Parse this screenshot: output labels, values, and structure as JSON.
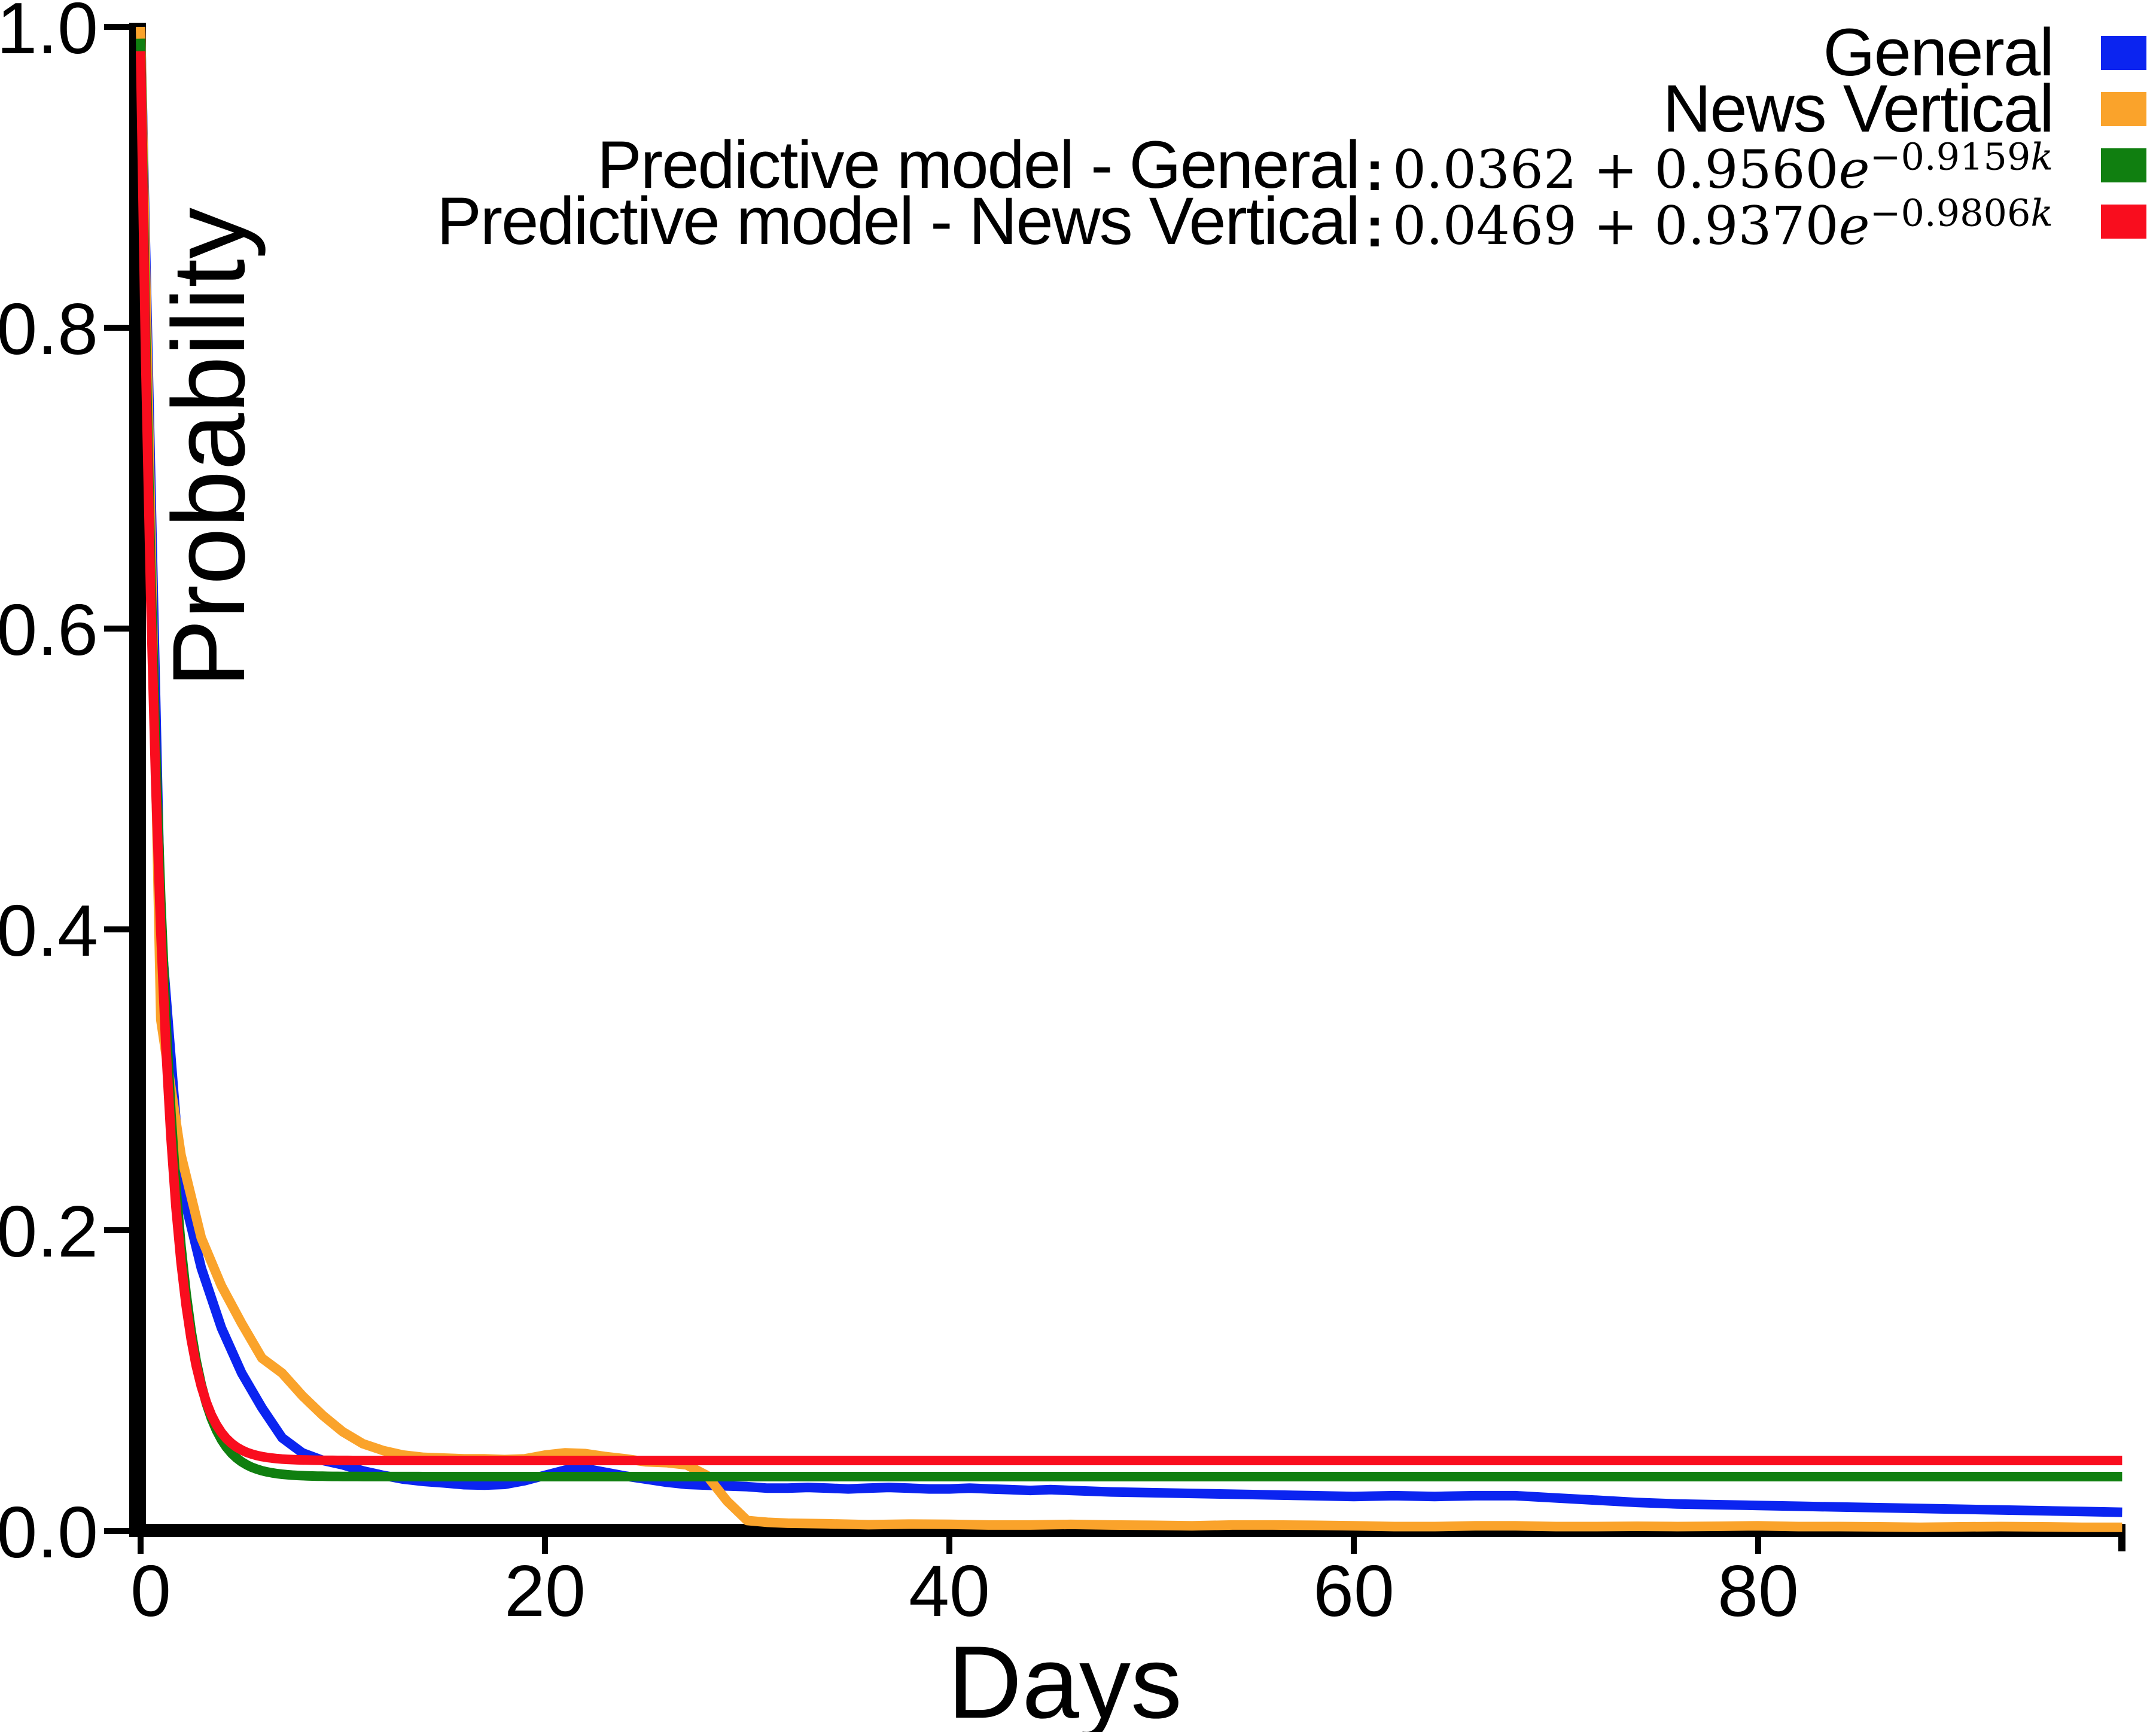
{
  "figure": {
    "background": "#ffffff"
  },
  "axis": {
    "xlabel": "Days",
    "ylabel": "Probability",
    "yticks": [
      {
        "label": "1.0",
        "value": 1.0
      },
      {
        "label": "0.8",
        "value": 0.8
      },
      {
        "label": "0.6",
        "value": 0.6
      },
      {
        "label": "0.4",
        "value": 0.4
      },
      {
        "label": "0.2",
        "value": 0.2
      },
      {
        "label": "0.0",
        "value": 0.0
      }
    ],
    "xticks": [
      {
        "label": "0",
        "value": 0
      },
      {
        "label": "20",
        "value": 20
      },
      {
        "label": "40",
        "value": 40
      },
      {
        "label": "60",
        "value": 60
      },
      {
        "label": "80",
        "value": 80
      }
    ]
  },
  "legend": {
    "rows": [
      {
        "label": "General",
        "separator": "",
        "formula_pre": "",
        "formula_e": "",
        "formula_sup": "",
        "formula_supk": ""
      },
      {
        "label": "News Vertical",
        "separator": "",
        "formula_pre": "",
        "formula_e": "",
        "formula_sup": "",
        "formula_supk": ""
      },
      {
        "label": "Predictive model - General",
        "separator": ":",
        "formula_pre": "0.0362 + 0.9560",
        "formula_e": "e",
        "formula_sup": "−0.9159",
        "formula_supk": "k"
      },
      {
        "label": "Predictive model - News Vertical",
        "separator": ":",
        "formula_pre": "0.0469 + 0.9370",
        "formula_e": "e",
        "formula_sup": "−0.9806",
        "formula_supk": "k"
      }
    ]
  },
  "chart_data": {
    "type": "line",
    "title": "",
    "xlabel": "Days",
    "ylabel": "Probability",
    "xlim": [
      0,
      98
    ],
    "ylim": [
      0,
      1.0
    ],
    "xticks": [
      0,
      20,
      40,
      60,
      80
    ],
    "yticks": [
      0.0,
      0.2,
      0.4,
      0.6,
      0.8,
      1.0
    ],
    "grid": false,
    "legend_position": "top-right",
    "series": [
      {
        "name": "General",
        "kind": "empirical",
        "color": "#0B24F0",
        "points": [
          [
            0,
            1.0
          ],
          [
            1,
            0.4
          ],
          [
            2,
            0.23
          ],
          [
            3,
            0.175
          ],
          [
            4,
            0.135
          ],
          [
            5,
            0.105
          ],
          [
            6,
            0.082
          ],
          [
            7,
            0.062
          ],
          [
            8,
            0.052
          ],
          [
            9,
            0.047
          ],
          [
            10,
            0.044
          ],
          [
            11,
            0.04
          ],
          [
            12,
            0.037
          ],
          [
            13,
            0.0345
          ],
          [
            14,
            0.033
          ],
          [
            15,
            0.032
          ],
          [
            16,
            0.0308
          ],
          [
            17,
            0.0305
          ],
          [
            18,
            0.031
          ],
          [
            19,
            0.0335
          ],
          [
            20,
            0.037
          ],
          [
            21,
            0.0405
          ],
          [
            22,
            0.0415
          ],
          [
            23,
            0.039
          ],
          [
            24,
            0.0365
          ],
          [
            25,
            0.0345
          ],
          [
            26,
            0.0325
          ],
          [
            27,
            0.031
          ],
          [
            28,
            0.0305
          ],
          [
            29,
            0.03
          ],
          [
            30,
            0.0295
          ],
          [
            31,
            0.0285
          ],
          [
            32,
            0.0285
          ],
          [
            33,
            0.029
          ],
          [
            34,
            0.0285
          ],
          [
            35,
            0.028
          ],
          [
            36,
            0.0285
          ],
          [
            37,
            0.029
          ],
          [
            38,
            0.0285
          ],
          [
            39,
            0.028
          ],
          [
            40,
            0.028
          ],
          [
            41,
            0.0285
          ],
          [
            42,
            0.028
          ],
          [
            43,
            0.0275
          ],
          [
            44,
            0.027
          ],
          [
            45,
            0.0275
          ],
          [
            46,
            0.027
          ],
          [
            47,
            0.0265
          ],
          [
            48,
            0.026
          ],
          [
            50,
            0.0255
          ],
          [
            52,
            0.025
          ],
          [
            54,
            0.0245
          ],
          [
            56,
            0.024
          ],
          [
            58,
            0.0235
          ],
          [
            60,
            0.023
          ],
          [
            62,
            0.0235
          ],
          [
            64,
            0.023
          ],
          [
            66,
            0.0235
          ],
          [
            68,
            0.0235
          ],
          [
            70,
            0.022
          ],
          [
            72,
            0.0205
          ],
          [
            74,
            0.019
          ],
          [
            76,
            0.018
          ],
          [
            78,
            0.0175
          ],
          [
            80,
            0.017
          ],
          [
            82,
            0.0165
          ],
          [
            84,
            0.016
          ],
          [
            86,
            0.0155
          ],
          [
            88,
            0.015
          ],
          [
            90,
            0.0145
          ],
          [
            92,
            0.014
          ],
          [
            94,
            0.0135
          ],
          [
            96,
            0.013
          ],
          [
            98,
            0.0125
          ]
        ]
      },
      {
        "name": "News Vertical",
        "kind": "empirical",
        "color": "#FAA32B",
        "points": [
          [
            0,
            1.0
          ],
          [
            1,
            0.34
          ],
          [
            2,
            0.25
          ],
          [
            3,
            0.195
          ],
          [
            4,
            0.163
          ],
          [
            5,
            0.138
          ],
          [
            6,
            0.115
          ],
          [
            7,
            0.105
          ],
          [
            8,
            0.09
          ],
          [
            9,
            0.077
          ],
          [
            10,
            0.066
          ],
          [
            11,
            0.058
          ],
          [
            12,
            0.0535
          ],
          [
            13,
            0.0505
          ],
          [
            14,
            0.049
          ],
          [
            15,
            0.0485
          ],
          [
            16,
            0.048
          ],
          [
            17,
            0.048
          ],
          [
            18,
            0.0475
          ],
          [
            19,
            0.048
          ],
          [
            20,
            0.0505
          ],
          [
            21,
            0.052
          ],
          [
            22,
            0.0515
          ],
          [
            23,
            0.0495
          ],
          [
            24,
            0.048
          ],
          [
            25,
            0.046
          ],
          [
            26,
            0.0455
          ],
          [
            27,
            0.044
          ],
          [
            28,
            0.037
          ],
          [
            29,
            0.02
          ],
          [
            30,
            0.007
          ],
          [
            31,
            0.0058
          ],
          [
            32,
            0.0052
          ],
          [
            34,
            0.0048
          ],
          [
            36,
            0.0042
          ],
          [
            38,
            0.0046
          ],
          [
            40,
            0.0045
          ],
          [
            42,
            0.004
          ],
          [
            44,
            0.004
          ],
          [
            46,
            0.0044
          ],
          [
            48,
            0.004
          ],
          [
            50,
            0.0038
          ],
          [
            52,
            0.0035
          ],
          [
            54,
            0.004
          ],
          [
            56,
            0.004
          ],
          [
            58,
            0.0038
          ],
          [
            60,
            0.0035
          ],
          [
            62,
            0.003
          ],
          [
            64,
            0.003
          ],
          [
            66,
            0.0035
          ],
          [
            68,
            0.0035
          ],
          [
            70,
            0.003
          ],
          [
            72,
            0.003
          ],
          [
            74,
            0.0032
          ],
          [
            76,
            0.003
          ],
          [
            78,
            0.0032
          ],
          [
            80,
            0.0035
          ],
          [
            82,
            0.003
          ],
          [
            84,
            0.003
          ],
          [
            86,
            0.0028
          ],
          [
            88,
            0.0025
          ],
          [
            90,
            0.0028
          ],
          [
            92,
            0.003
          ],
          [
            94,
            0.0028
          ],
          [
            96,
            0.0025
          ],
          [
            98,
            0.0025
          ]
        ]
      },
      {
        "name": "Predictive model - General",
        "kind": "model",
        "color": "#107F10",
        "formula": "0.0362 + 0.9560e^(−0.9159k)",
        "model": {
          "a": 0.0362,
          "b": 0.956,
          "c": 0.9159
        },
        "domain": [
          0,
          98
        ]
      },
      {
        "name": "Predictive model - News Vertical",
        "kind": "model",
        "color": "#F90D1E",
        "formula": "0.0469 + 0.9370e^(−0.9806k)",
        "model": {
          "a": 0.0469,
          "b": 0.937,
          "c": 0.9806
        },
        "domain": [
          0,
          98
        ]
      }
    ]
  }
}
